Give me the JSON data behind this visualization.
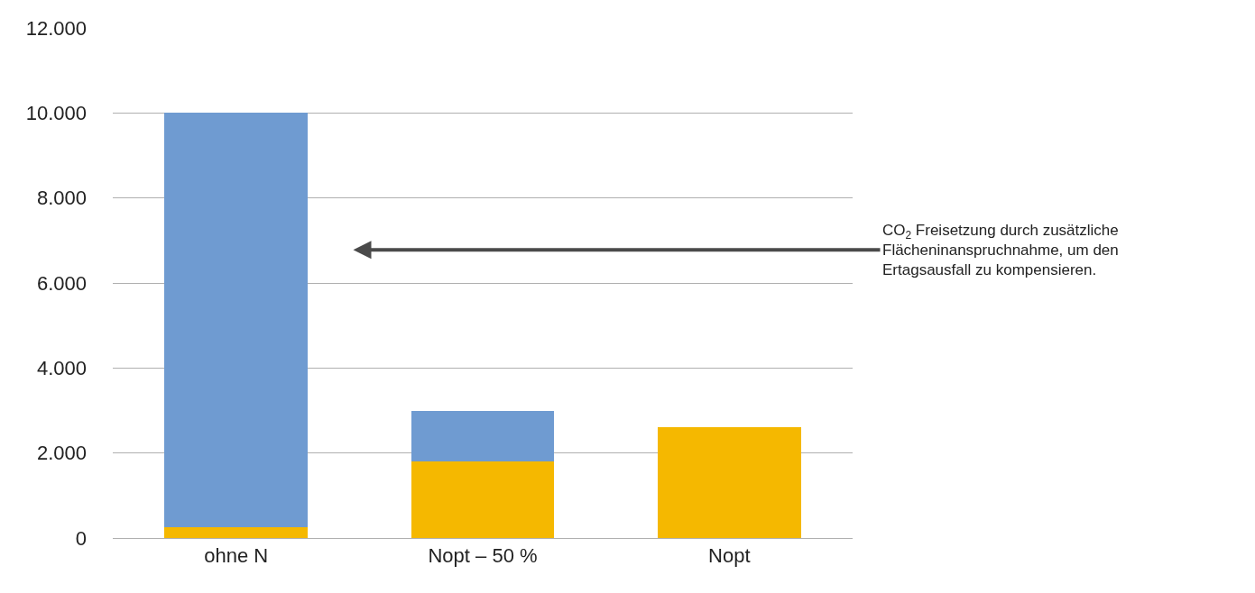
{
  "chart_data": {
    "type": "bar",
    "stacked": true,
    "categories": [
      "ohne N",
      "Nopt – 50 %",
      "Nopt"
    ],
    "series": [
      {
        "color": "#f5b800",
        "values": [
          250,
          1800,
          2600
        ]
      },
      {
        "color": "#6f9bd1",
        "values": [
          9750,
          1200,
          0
        ]
      }
    ],
    "ylim": [
      0,
      12000
    ],
    "yticks": [
      0,
      {
        "value": 2000,
        "label": "2.000"
      },
      {
        "value": 4000,
        "label": "4.000"
      },
      {
        "value": 6000,
        "label": "6.000"
      },
      {
        "value": 8000,
        "label": "8.000"
      },
      {
        "value": 10000,
        "label": "10.000"
      },
      {
        "value": 12000,
        "label": "12.000"
      }
    ],
    "grid": "y",
    "annotations": [
      "CO$_{2}$ Freisetzung durch zusätzliche\nFlächeninanspruchnahme, um den\nErtagsausfall zu kompensieren."
    ]
  }
}
